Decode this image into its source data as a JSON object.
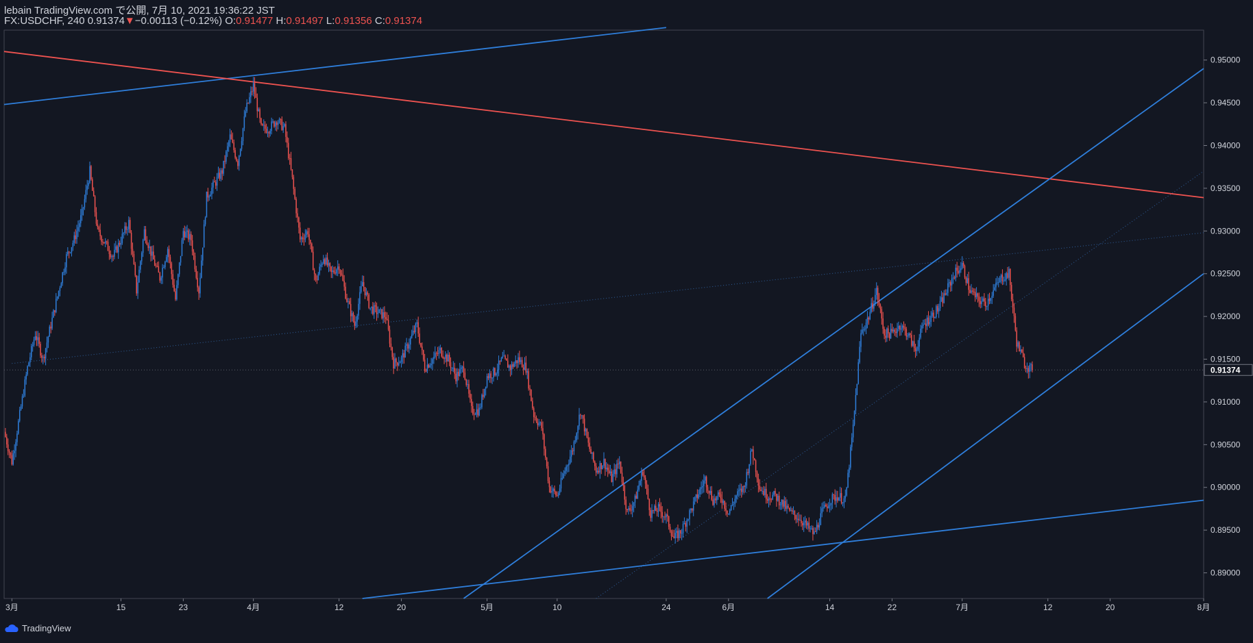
{
  "header": {
    "published_line": "lebain TradingView.com で公開, 7月 10, 2021 19:36:22 JST",
    "symbol": "FX:USDCHF, 240 0.91374",
    "change": "−0.00113 (−0.12%)",
    "o_label": " O:",
    "o_value": "0.91477",
    "h_label": " H:",
    "h_value": "0.91497",
    "l_label": " L:",
    "l_value": "0.91356",
    "c_label": " C:",
    "c_value": "0.91374"
  },
  "footer": {
    "brand": "TradingView"
  },
  "colors": {
    "background": "#131722",
    "up": "#2f7fdc",
    "down": "#ef5350",
    "trendline_blue": "#2f7fdc",
    "trendline_red": "#ef5350",
    "text": "#d1d4dc"
  },
  "chart_data": {
    "type": "candlestick",
    "symbol": "FX:USDCHF",
    "interval": "240",
    "ylim": [
      0.887,
      0.9535
    ],
    "y_ticks": [
      0.89,
      0.895,
      0.9,
      0.905,
      0.91,
      0.915,
      0.92,
      0.925,
      0.93,
      0.935,
      0.94,
      0.945,
      0.95
    ],
    "y_tick_labels": [
      "0.89000",
      "0.89500",
      "0.90000",
      "0.90500",
      "0.91000",
      "0.91500",
      "0.92000",
      "0.92500",
      "0.93000",
      "0.93500",
      "0.94000",
      "0.94500",
      "0.95000"
    ],
    "last_price_label": "0.91374",
    "last_price": 0.91374,
    "x_start": "2021-02-28",
    "x_end": "2021-08-01",
    "x_ticks": [
      {
        "date": "2021-03-01",
        "label": "3月"
      },
      {
        "date": "2021-03-15",
        "label": "15"
      },
      {
        "date": "2021-03-23",
        "label": "23"
      },
      {
        "date": "2021-04-01",
        "label": "4月"
      },
      {
        "date": "2021-04-12",
        "label": "12"
      },
      {
        "date": "2021-04-20",
        "label": "20"
      },
      {
        "date": "2021-05-01",
        "label": "5月"
      },
      {
        "date": "2021-05-10",
        "label": "10"
      },
      {
        "date": "2021-05-24",
        "label": "24"
      },
      {
        "date": "2021-06-01",
        "label": "6月"
      },
      {
        "date": "2021-06-14",
        "label": "14"
      },
      {
        "date": "2021-06-22",
        "label": "22"
      },
      {
        "date": "2021-07-01",
        "label": "7月"
      },
      {
        "date": "2021-07-12",
        "label": "12"
      },
      {
        "date": "2021-07-20",
        "label": "20"
      },
      {
        "date": "2021-08-01",
        "label": "8月"
      }
    ],
    "price_path": [
      [
        "2021-02-28",
        0.9065
      ],
      [
        "2021-03-01",
        0.903
      ],
      [
        "2021-03-03",
        0.914
      ],
      [
        "2021-03-04",
        0.918
      ],
      [
        "2021-03-05",
        0.915
      ],
      [
        "2021-03-08",
        0.927
      ],
      [
        "2021-03-09",
        0.929
      ],
      [
        "2021-03-10",
        0.932
      ],
      [
        "2021-03-11",
        0.937
      ],
      [
        "2021-03-12",
        0.93
      ],
      [
        "2021-03-14",
        0.927
      ],
      [
        "2021-03-16",
        0.931
      ],
      [
        "2021-03-17",
        0.923
      ],
      [
        "2021-03-18",
        0.93
      ],
      [
        "2021-03-19",
        0.927
      ],
      [
        "2021-03-20",
        0.9245
      ],
      [
        "2021-03-21",
        0.928
      ],
      [
        "2021-03-22",
        0.922
      ],
      [
        "2021-03-23",
        0.93
      ],
      [
        "2021-03-24",
        0.929
      ],
      [
        "2021-03-25",
        0.923
      ],
      [
        "2021-03-26",
        0.934
      ],
      [
        "2021-03-28",
        0.937
      ],
      [
        "2021-03-29",
        0.941
      ],
      [
        "2021-03-30",
        0.938
      ],
      [
        "2021-03-31",
        0.944
      ],
      [
        "2021-04-01",
        0.947
      ],
      [
        "2021-04-02",
        0.942
      ],
      [
        "2021-04-03",
        0.942
      ],
      [
        "2021-04-04",
        0.943
      ],
      [
        "2021-04-05",
        0.942
      ],
      [
        "2021-04-06",
        0.936
      ],
      [
        "2021-04-07",
        0.929
      ],
      [
        "2021-04-08",
        0.93
      ],
      [
        "2021-04-09",
        0.924
      ],
      [
        "2021-04-10",
        0.927
      ],
      [
        "2021-04-11",
        0.925
      ],
      [
        "2021-04-12",
        0.926
      ],
      [
        "2021-04-13",
        0.922
      ],
      [
        "2021-04-14",
        0.919
      ],
      [
        "2021-04-15",
        0.924
      ],
      [
        "2021-04-16",
        0.921
      ],
      [
        "2021-04-18",
        0.92
      ],
      [
        "2021-04-19",
        0.9145
      ],
      [
        "2021-04-20",
        0.915
      ],
      [
        "2021-04-21",
        0.917
      ],
      [
        "2021-04-22",
        0.919
      ],
      [
        "2021-04-23",
        0.914
      ],
      [
        "2021-04-25",
        0.916
      ],
      [
        "2021-04-26",
        0.915
      ],
      [
        "2021-04-27",
        0.913
      ],
      [
        "2021-04-28",
        0.914
      ],
      [
        "2021-04-29",
        0.909
      ],
      [
        "2021-04-30",
        0.909
      ],
      [
        "2021-05-01",
        0.913
      ],
      [
        "2021-05-02",
        0.9135
      ],
      [
        "2021-05-03",
        0.915
      ],
      [
        "2021-05-04",
        0.914
      ],
      [
        "2021-05-05",
        0.915
      ],
      [
        "2021-05-06",
        0.914
      ],
      [
        "2021-05-07",
        0.9085
      ],
      [
        "2021-05-08",
        0.907
      ],
      [
        "2021-05-09",
        0.9
      ],
      [
        "2021-05-10",
        0.899
      ],
      [
        "2021-05-11",
        0.902
      ],
      [
        "2021-05-12",
        0.9045
      ],
      [
        "2021-05-13",
        0.909
      ],
      [
        "2021-05-14",
        0.905
      ],
      [
        "2021-05-15",
        0.902
      ],
      [
        "2021-05-16",
        0.903
      ],
      [
        "2021-05-17",
        0.901
      ],
      [
        "2021-05-18",
        0.903
      ],
      [
        "2021-05-19",
        0.897
      ],
      [
        "2021-05-20",
        0.8985
      ],
      [
        "2021-05-21",
        0.902
      ],
      [
        "2021-05-22",
        0.897
      ],
      [
        "2021-05-23",
        0.8975
      ],
      [
        "2021-05-24",
        0.8965
      ],
      [
        "2021-05-25",
        0.894
      ],
      [
        "2021-05-26",
        0.895
      ],
      [
        "2021-05-27",
        0.897
      ],
      [
        "2021-05-28",
        0.899
      ],
      [
        "2021-05-29",
        0.901
      ],
      [
        "2021-05-30",
        0.8985
      ],
      [
        "2021-05-31",
        0.899
      ],
      [
        "2021-06-01",
        0.897
      ],
      [
        "2021-06-02",
        0.899
      ],
      [
        "2021-06-03",
        0.9
      ],
      [
        "2021-06-04",
        0.9045
      ],
      [
        "2021-06-05",
        0.9
      ],
      [
        "2021-06-06",
        0.899
      ],
      [
        "2021-06-07",
        0.899
      ],
      [
        "2021-06-08",
        0.898
      ],
      [
        "2021-06-09",
        0.897
      ],
      [
        "2021-06-10",
        0.8965
      ],
      [
        "2021-06-11",
        0.8955
      ],
      [
        "2021-06-12",
        0.8945
      ],
      [
        "2021-06-13",
        0.897
      ],
      [
        "2021-06-14",
        0.8985
      ],
      [
        "2021-06-15",
        0.899
      ],
      [
        "2021-06-16",
        0.8985
      ],
      [
        "2021-06-17",
        0.907
      ],
      [
        "2021-06-18",
        0.918
      ],
      [
        "2021-06-19",
        0.92
      ],
      [
        "2021-06-20",
        0.923
      ],
      [
        "2021-06-21",
        0.918
      ],
      [
        "2021-06-22",
        0.918
      ],
      [
        "2021-06-23",
        0.919
      ],
      [
        "2021-06-24",
        0.918
      ],
      [
        "2021-06-25",
        0.916
      ],
      [
        "2021-06-26",
        0.919
      ],
      [
        "2021-06-27",
        0.92
      ],
      [
        "2021-06-28",
        0.921
      ],
      [
        "2021-06-29",
        0.923
      ],
      [
        "2021-06-30",
        0.925
      ],
      [
        "2021-07-01",
        0.926
      ],
      [
        "2021-07-02",
        0.923
      ],
      [
        "2021-07-03",
        0.922
      ],
      [
        "2021-07-04",
        0.9215
      ],
      [
        "2021-07-05",
        0.923
      ],
      [
        "2021-07-06",
        0.9245
      ],
      [
        "2021-07-07",
        0.925
      ],
      [
        "2021-07-08",
        0.917
      ],
      [
        "2021-07-09",
        0.9145
      ],
      [
        "2021-07-10",
        0.9137
      ]
    ],
    "trendlines": [
      {
        "color": "blue",
        "p1": [
          "2021-02-28",
          0.9448
        ],
        "p2": [
          "2021-05-24",
          0.9538
        ]
      },
      {
        "color": "red",
        "p1": [
          "2021-02-28",
          0.951
        ],
        "p2": [
          "2021-08-01",
          0.9339
        ]
      },
      {
        "color": "blue",
        "p1": [
          "2021-04-28",
          0.887
        ],
        "p2": [
          "2021-08-01",
          0.949
        ]
      },
      {
        "color": "blue",
        "p1": [
          "2021-06-06",
          0.887
        ],
        "p2": [
          "2021-08-01",
          0.925
        ]
      },
      {
        "color": "blue",
        "p1": [
          "2021-04-15",
          0.887
        ],
        "p2": [
          "2021-08-01",
          0.8985
        ]
      }
    ],
    "dotted_lines": [
      {
        "p1": [
          "2021-03-01",
          0.9145
        ],
        "p2": [
          "2021-08-01",
          0.9298
        ]
      },
      {
        "p1": [
          "2021-05-15",
          0.887
        ],
        "p2": [
          "2021-08-01",
          0.937
        ]
      }
    ]
  }
}
